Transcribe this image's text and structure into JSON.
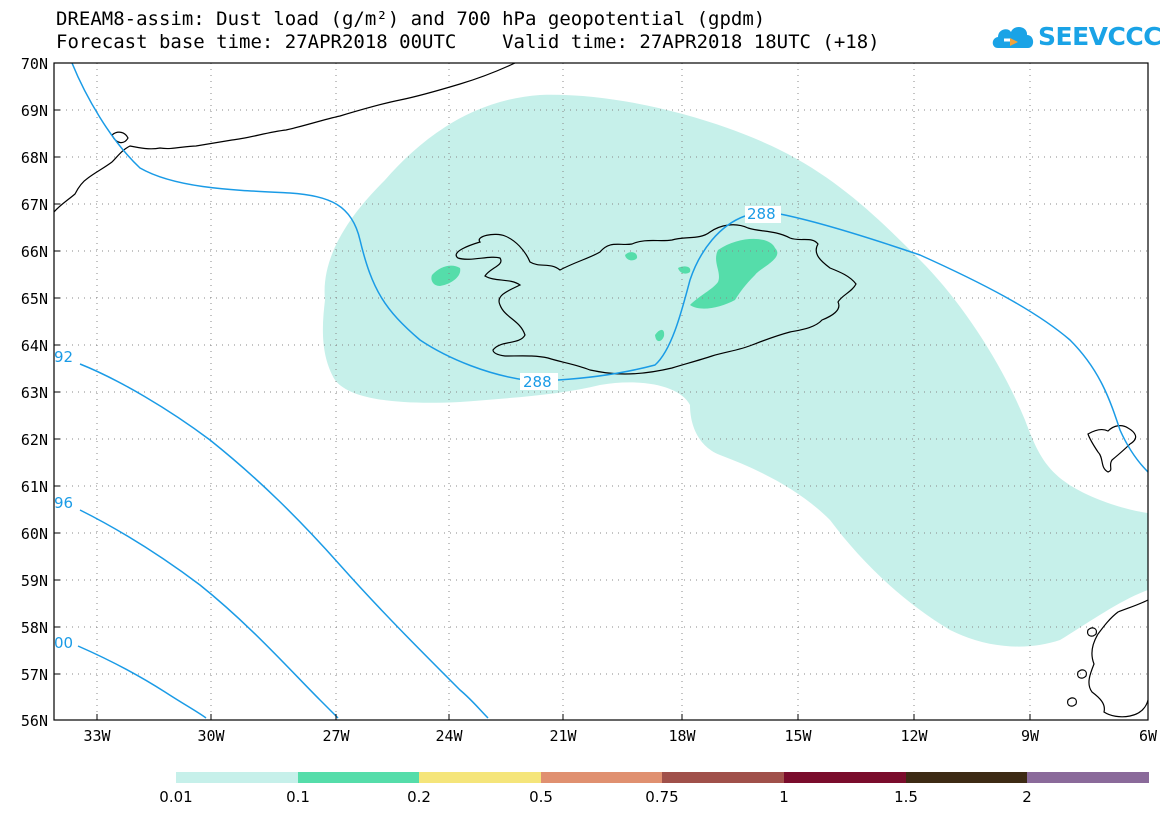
{
  "title": {
    "line1": "DREAM8-assim: Dust load (g/m²) and 700 hPa geopotential (gpdm)",
    "line2": "Forecast base time: 27APR2018 00UTC    Valid time: 27APR2018 18UTC (+18)"
  },
  "logo": {
    "text": "SEEVCCC",
    "icon": "cloud-icon"
  },
  "map": {
    "lat_labels": [
      "70N",
      "69N",
      "68N",
      "67N",
      "66N",
      "65N",
      "64N",
      "63N",
      "62N",
      "61N",
      "60N",
      "59N",
      "58N",
      "57N",
      "56N"
    ],
    "lon_labels": [
      "33W",
      "30W",
      "27W",
      "24W",
      "21W",
      "18W",
      "15W",
      "12W",
      "9W",
      "6W"
    ],
    "contour_labels": [
      "288",
      "288",
      "92",
      "96",
      "00"
    ]
  },
  "colorbar": {
    "colors": [
      "#c6f0ea",
      "#55ddaa",
      "#f5e57a",
      "#e09070",
      "#a0504a",
      "#7a0c2c",
      "#3d2a14",
      "#8a6a9a"
    ],
    "tick_labels": [
      "0.01",
      "0.1",
      "0.2",
      "0.5",
      "0.75",
      "1",
      "1.5",
      "2"
    ]
  }
}
